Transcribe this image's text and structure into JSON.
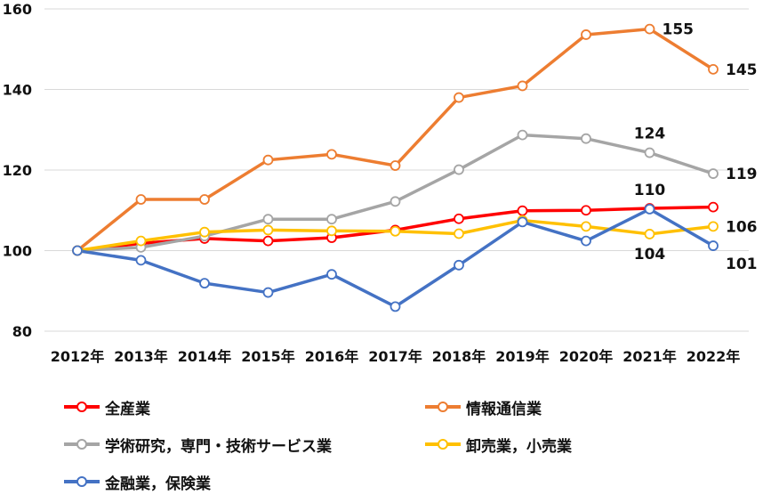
{
  "chart_data": {
    "type": "line",
    "title": "",
    "xlabel": "",
    "ylabel": "",
    "categories": [
      "2012年",
      "2013年",
      "2014年",
      "2015年",
      "2016年",
      "2017年",
      "2018年",
      "2019年",
      "2020年",
      "2021年",
      "2022年"
    ],
    "ylim": [
      80,
      160
    ],
    "yticks": [
      80,
      100,
      120,
      140,
      160
    ],
    "grid": "horizontal",
    "legend_position": "bottom",
    "series": [
      {
        "name": "全産業",
        "color": "#ff0000",
        "values": [
          100,
          101.8,
          103.0,
          102.4,
          103.2,
          105.1,
          107.9,
          109.9,
          110.0,
          110.5,
          110.8
        ]
      },
      {
        "name": "情報通信業",
        "color": "#ed7d31",
        "values": [
          100,
          112.7,
          112.7,
          122.5,
          123.9,
          121.1,
          138.0,
          140.9,
          153.6,
          155.0,
          145.0
        ]
      },
      {
        "name": "学術研究，専門・技術サービス業",
        "color": "#a5a5a5",
        "values": [
          100,
          100.8,
          103.6,
          107.8,
          107.8,
          112.2,
          120.1,
          128.7,
          127.8,
          124.3,
          119.1
        ]
      },
      {
        "name": "卸売業，小売業",
        "color": "#ffc000",
        "values": [
          100,
          102.4,
          104.6,
          105.1,
          104.9,
          104.8,
          104.2,
          107.5,
          106.0,
          104.1,
          106.0
        ]
      },
      {
        "name": "金融業，保険業",
        "color": "#4472c4",
        "values": [
          100,
          97.6,
          91.9,
          89.6,
          94.1,
          86.1,
          96.4,
          107.1,
          102.4,
          110.3,
          101.2
        ]
      }
    ],
    "annotations": [
      {
        "text": "155",
        "series": 1,
        "index": 9,
        "position": "right"
      },
      {
        "text": "145",
        "series": 1,
        "index": 10,
        "position": "right"
      },
      {
        "text": "124",
        "series": 2,
        "index": 9,
        "position": "above"
      },
      {
        "text": "119",
        "series": 2,
        "index": 10,
        "position": "right"
      },
      {
        "text": "110",
        "series": 4,
        "index": 9,
        "position": "above"
      },
      {
        "text": "104",
        "series": 3,
        "index": 9,
        "position": "below"
      },
      {
        "text": "106",
        "series": 3,
        "index": 10,
        "position": "right"
      },
      {
        "text": "101",
        "series": 4,
        "index": 10,
        "position": "below-right"
      }
    ]
  }
}
